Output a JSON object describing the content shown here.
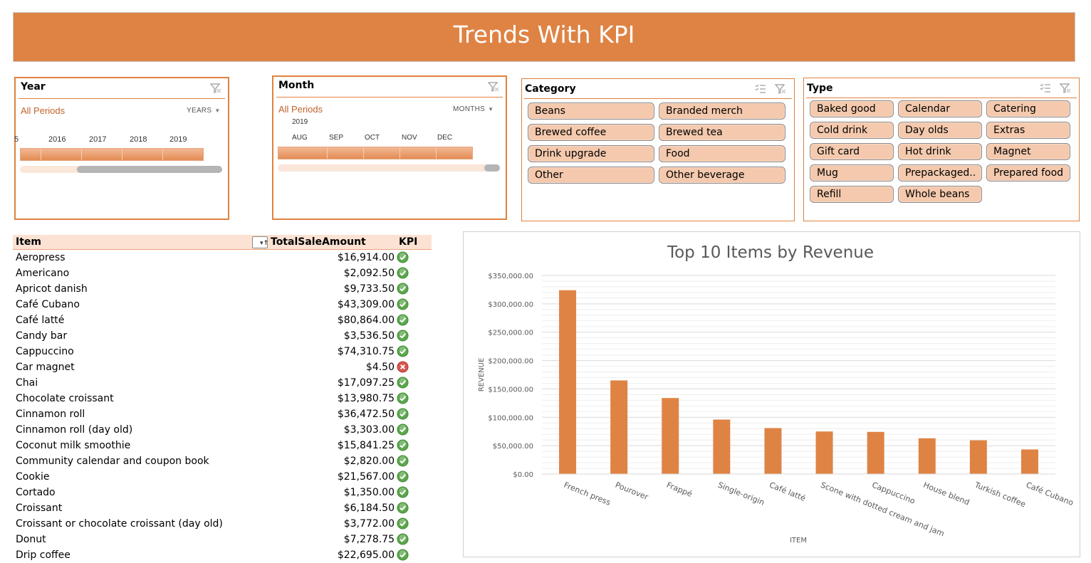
{
  "header": {
    "title": "Trends With KPI"
  },
  "slicers": {
    "year": {
      "title": "Year",
      "selection": "All Periods",
      "unit": "YEARS",
      "ticks": [
        "5",
        "2016",
        "2017",
        "2018",
        "2019"
      ]
    },
    "month": {
      "title": "Month",
      "selection": "All Periods",
      "unit": "MONTHS",
      "year_label": "2019",
      "ticks": [
        "AUG",
        "SEP",
        "OCT",
        "NOV",
        "DEC"
      ]
    },
    "category": {
      "title": "Category",
      "items": [
        "Beans",
        "Branded merch",
        "Brewed coffee",
        "Brewed tea",
        "Drink upgrade",
        "Food",
        "Other",
        "Other beverage"
      ]
    },
    "type": {
      "title": "Type",
      "items": [
        "Baked good",
        "Calendar",
        "Catering",
        "Cold drink",
        "Day olds",
        "Extras",
        "Gift card",
        "Hot drink",
        "Magnet",
        "Mug",
        "Prepackaged..",
        "Prepared food",
        "Refill",
        "Whole beans"
      ]
    }
  },
  "table": {
    "headers": {
      "item": "Item",
      "amount": "TotalSaleAmount",
      "kpi": "KPI"
    },
    "rows": [
      {
        "item": "Aeropress",
        "amount": "$16,914.00",
        "kpi": "good"
      },
      {
        "item": "Americano",
        "amount": "$2,092.50",
        "kpi": "good"
      },
      {
        "item": "Apricot danish",
        "amount": "$9,733.50",
        "kpi": "good"
      },
      {
        "item": "Café Cubano",
        "amount": "$43,309.00",
        "kpi": "good"
      },
      {
        "item": "Café latté",
        "amount": "$80,864.00",
        "kpi": "good"
      },
      {
        "item": "Candy bar",
        "amount": "$3,536.50",
        "kpi": "good"
      },
      {
        "item": "Cappuccino",
        "amount": "$74,310.75",
        "kpi": "good"
      },
      {
        "item": "Car magnet",
        "amount": "$4.50",
        "kpi": "bad"
      },
      {
        "item": "Chai",
        "amount": "$17,097.25",
        "kpi": "good"
      },
      {
        "item": "Chocolate croissant",
        "amount": "$13,980.75",
        "kpi": "good"
      },
      {
        "item": "Cinnamon roll",
        "amount": "$36,472.50",
        "kpi": "good"
      },
      {
        "item": "Cinnamon roll (day old)",
        "amount": "$3,303.00",
        "kpi": "good"
      },
      {
        "item": "Coconut milk smoothie",
        "amount": "$15,841.25",
        "kpi": "good"
      },
      {
        "item": "Community calendar and coupon book",
        "amount": "$2,820.00",
        "kpi": "good"
      },
      {
        "item": "Cookie",
        "amount": "$21,567.00",
        "kpi": "good"
      },
      {
        "item": "Cortado",
        "amount": "$1,350.00",
        "kpi": "good"
      },
      {
        "item": "Croissant",
        "amount": "$6,184.50",
        "kpi": "good"
      },
      {
        "item": "Croissant or chocolate croissant (day old)",
        "amount": "$3,772.00",
        "kpi": "good"
      },
      {
        "item": "Donut",
        "amount": "$7,278.75",
        "kpi": "good"
      },
      {
        "item": "Drip coffee",
        "amount": "$22,695.00",
        "kpi": "good"
      }
    ]
  },
  "colors": {
    "accent": "#df8344",
    "chip": "#f4c9ad",
    "kpi_good": "#5aa64b",
    "kpi_bad": "#d9534f"
  },
  "chart_data": {
    "type": "bar",
    "title": "Top 10 Items by Revenue",
    "xlabel": "ITEM",
    "ylabel": "REVENUE",
    "ylim": [
      0,
      350000
    ],
    "ytick_values": [
      0,
      50000,
      100000,
      150000,
      200000,
      250000,
      300000,
      350000
    ],
    "ytick_labels": [
      "$0.00",
      "$50,000.00",
      "$100,000.00",
      "$150,000.00",
      "$200,000.00",
      "$250,000.00",
      "$300,000.00",
      "$350,000.00"
    ],
    "categories": [
      "French press",
      "Pourover",
      "Frappé",
      "Single-origin",
      "Café latté",
      "Scone with dotted cream and jam",
      "Cappuccino",
      "House blend",
      "Turkish coffee",
      "Café Cubano"
    ],
    "values": [
      324000,
      165000,
      134000,
      96000,
      81000,
      75000,
      74300,
      63000,
      59500,
      43300
    ],
    "grid": true,
    "legend": "none"
  }
}
